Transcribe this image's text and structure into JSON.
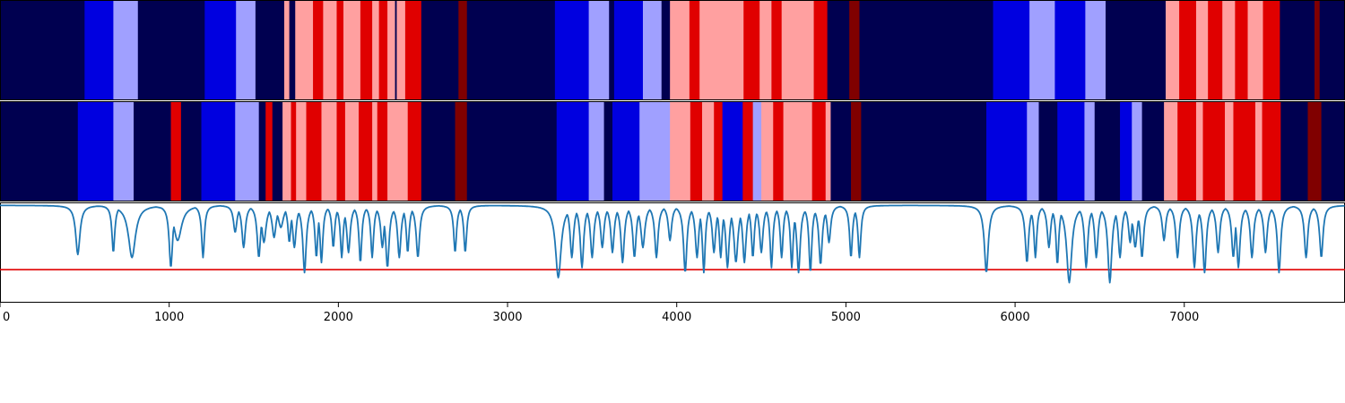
{
  "chart_data": {
    "type": "segmentation-and-line",
    "colors": {
      "c0": "#000050",
      "c1": "#0000e0",
      "c2": "#a0a0ff",
      "c3": "#ffa0a0",
      "c4": "#e00000",
      "c5": "#800000",
      "line": "#1f77b4",
      "threshold": "#e00000"
    },
    "xlim": [
      0,
      7950
    ],
    "xticks": [
      0,
      1000,
      2000,
      3000,
      4000,
      5000,
      6000,
      7000
    ],
    "tracks": [
      {
        "name": "",
        "segments": [
          [
            0,
            500,
            "c0"
          ],
          [
            500,
            670,
            "c1"
          ],
          [
            670,
            815,
            "c2"
          ],
          [
            815,
            1210,
            "c0"
          ],
          [
            1210,
            1395,
            "c1"
          ],
          [
            1395,
            1510,
            "c2"
          ],
          [
            1510,
            1680,
            "c0"
          ],
          [
            1680,
            1710,
            "c3"
          ],
          [
            1710,
            1745,
            "c0"
          ],
          [
            1745,
            1850,
            "c3"
          ],
          [
            1850,
            1910,
            "c4"
          ],
          [
            1910,
            1990,
            "c3"
          ],
          [
            1990,
            2030,
            "c4"
          ],
          [
            2030,
            2130,
            "c3"
          ],
          [
            2130,
            2200,
            "c4"
          ],
          [
            2200,
            2240,
            "c3"
          ],
          [
            2240,
            2290,
            "c4"
          ],
          [
            2290,
            2335,
            "c3"
          ],
          [
            2335,
            2345,
            "c0"
          ],
          [
            2345,
            2395,
            "c3"
          ],
          [
            2395,
            2490,
            "c4"
          ],
          [
            2490,
            2710,
            "c0"
          ],
          [
            2710,
            2760,
            "c5"
          ],
          [
            2760,
            3280,
            "c0"
          ],
          [
            3280,
            3480,
            "c1"
          ],
          [
            3480,
            3600,
            "c2"
          ],
          [
            3600,
            3630,
            "c0"
          ],
          [
            3630,
            3800,
            "c1"
          ],
          [
            3800,
            3910,
            "c2"
          ],
          [
            3910,
            3960,
            "c0"
          ],
          [
            3960,
            4075,
            "c3"
          ],
          [
            4075,
            4135,
            "c4"
          ],
          [
            4135,
            4395,
            "c3"
          ],
          [
            4395,
            4490,
            "c4"
          ],
          [
            4490,
            4560,
            "c3"
          ],
          [
            4560,
            4620,
            "c4"
          ],
          [
            4620,
            4810,
            "c3"
          ],
          [
            4810,
            4890,
            "c4"
          ],
          [
            4890,
            5020,
            "c0"
          ],
          [
            5020,
            5080,
            "c5"
          ],
          [
            5080,
            5870,
            "c0"
          ],
          [
            5870,
            6085,
            "c1"
          ],
          [
            6085,
            6235,
            "c2"
          ],
          [
            6235,
            6415,
            "c1"
          ],
          [
            6415,
            6535,
            "c2"
          ],
          [
            6535,
            6890,
            "c0"
          ],
          [
            6890,
            6970,
            "c3"
          ],
          [
            6970,
            7070,
            "c4"
          ],
          [
            7070,
            7140,
            "c3"
          ],
          [
            7140,
            7225,
            "c4"
          ],
          [
            7225,
            7300,
            "c3"
          ],
          [
            7300,
            7375,
            "c4"
          ],
          [
            7375,
            7465,
            "c3"
          ],
          [
            7465,
            7565,
            "c4"
          ],
          [
            7565,
            7770,
            "c0"
          ],
          [
            7770,
            7800,
            "c5"
          ],
          [
            7800,
            7950,
            "c0"
          ]
        ]
      },
      {
        "name": "",
        "segments": [
          [
            0,
            460,
            "c0"
          ],
          [
            460,
            670,
            "c1"
          ],
          [
            670,
            790,
            "c2"
          ],
          [
            790,
            1010,
            "c0"
          ],
          [
            1010,
            1070,
            "c4"
          ],
          [
            1070,
            1190,
            "c0"
          ],
          [
            1190,
            1390,
            "c1"
          ],
          [
            1390,
            1530,
            "c2"
          ],
          [
            1530,
            1570,
            "c0"
          ],
          [
            1570,
            1610,
            "c4"
          ],
          [
            1610,
            1670,
            "c0"
          ],
          [
            1670,
            1720,
            "c3"
          ],
          [
            1720,
            1750,
            "c4"
          ],
          [
            1750,
            1810,
            "c3"
          ],
          [
            1810,
            1900,
            "c4"
          ],
          [
            1900,
            1990,
            "c3"
          ],
          [
            1990,
            2040,
            "c4"
          ],
          [
            2040,
            2120,
            "c3"
          ],
          [
            2120,
            2200,
            "c4"
          ],
          [
            2200,
            2230,
            "c3"
          ],
          [
            2230,
            2290,
            "c4"
          ],
          [
            2290,
            2410,
            "c3"
          ],
          [
            2410,
            2490,
            "c4"
          ],
          [
            2490,
            2690,
            "c0"
          ],
          [
            2690,
            2760,
            "c5"
          ],
          [
            2760,
            3290,
            "c0"
          ],
          [
            3290,
            3480,
            "c1"
          ],
          [
            3480,
            3570,
            "c2"
          ],
          [
            3570,
            3620,
            "c0"
          ],
          [
            3620,
            3780,
            "c1"
          ],
          [
            3780,
            3960,
            "c2"
          ],
          [
            3960,
            4080,
            "c3"
          ],
          [
            4080,
            4150,
            "c4"
          ],
          [
            4150,
            4220,
            "c3"
          ],
          [
            4220,
            4270,
            "c4"
          ],
          [
            4270,
            4390,
            "c1"
          ],
          [
            4390,
            4450,
            "c4"
          ],
          [
            4450,
            4500,
            "c2"
          ],
          [
            4500,
            4570,
            "c3"
          ],
          [
            4570,
            4630,
            "c4"
          ],
          [
            4630,
            4800,
            "c3"
          ],
          [
            4800,
            4880,
            "c4"
          ],
          [
            4880,
            4910,
            "c3"
          ],
          [
            4910,
            5030,
            "c0"
          ],
          [
            5030,
            5090,
            "c5"
          ],
          [
            5090,
            5830,
            "c0"
          ],
          [
            5830,
            6070,
            "c1"
          ],
          [
            6070,
            6140,
            "c2"
          ],
          [
            6140,
            6250,
            "c0"
          ],
          [
            6250,
            6410,
            "c1"
          ],
          [
            6410,
            6470,
            "c2"
          ],
          [
            6470,
            6620,
            "c0"
          ],
          [
            6620,
            6690,
            "c1"
          ],
          [
            6690,
            6750,
            "c2"
          ],
          [
            6750,
            6880,
            "c0"
          ],
          [
            6880,
            6960,
            "c3"
          ],
          [
            6960,
            7070,
            "c4"
          ],
          [
            7070,
            7110,
            "c3"
          ],
          [
            7110,
            7240,
            "c4"
          ],
          [
            7240,
            7290,
            "c3"
          ],
          [
            7290,
            7420,
            "c4"
          ],
          [
            7420,
            7460,
            "c3"
          ],
          [
            7460,
            7570,
            "c4"
          ],
          [
            7570,
            7730,
            "c0"
          ],
          [
            7730,
            7810,
            "c5"
          ],
          [
            7810,
            7950,
            "c0"
          ]
        ]
      }
    ],
    "line": {
      "ylim": [
        0,
        1
      ],
      "threshold": 0.33,
      "baseline": 0.97,
      "dips": [
        [
          460,
          0.48,
          15
        ],
        [
          670,
          0.5,
          10
        ],
        [
          780,
          0.45,
          25
        ],
        [
          1010,
          0.35,
          12
        ],
        [
          1050,
          0.62,
          28
        ],
        [
          1200,
          0.45,
          10
        ],
        [
          1390,
          0.7,
          12
        ],
        [
          1440,
          0.55,
          12
        ],
        [
          1530,
          0.45,
          12
        ],
        [
          1560,
          0.6,
          15
        ],
        [
          1620,
          0.65,
          14
        ],
        [
          1660,
          0.75,
          18
        ],
        [
          1710,
          0.6,
          10
        ],
        [
          1740,
          0.55,
          12
        ],
        [
          1800,
          0.3,
          12
        ],
        [
          1870,
          0.45,
          10
        ],
        [
          1900,
          0.4,
          10
        ],
        [
          1970,
          0.55,
          10
        ],
        [
          2020,
          0.45,
          10
        ],
        [
          2060,
          0.5,
          12
        ],
        [
          2130,
          0.4,
          10
        ],
        [
          2200,
          0.45,
          10
        ],
        [
          2260,
          0.55,
          12
        ],
        [
          2290,
          0.35,
          12
        ],
        [
          2360,
          0.45,
          12
        ],
        [
          2410,
          0.5,
          10
        ],
        [
          2470,
          0.45,
          12
        ],
        [
          2690,
          0.5,
          10
        ],
        [
          2750,
          0.5,
          10
        ],
        [
          3300,
          0.25,
          20
        ],
        [
          3380,
          0.45,
          12
        ],
        [
          3440,
          0.35,
          12
        ],
        [
          3500,
          0.45,
          12
        ],
        [
          3560,
          0.55,
          12
        ],
        [
          3620,
          0.5,
          12
        ],
        [
          3680,
          0.4,
          12
        ],
        [
          3750,
          0.45,
          12
        ],
        [
          3800,
          0.55,
          14
        ],
        [
          3880,
          0.45,
          12
        ],
        [
          3960,
          0.62,
          12
        ],
        [
          4050,
          0.3,
          12
        ],
        [
          4120,
          0.45,
          12
        ],
        [
          4160,
          0.3,
          10
        ],
        [
          4220,
          0.5,
          12
        ],
        [
          4260,
          0.45,
          10
        ],
        [
          4300,
          0.35,
          12
        ],
        [
          4350,
          0.4,
          14
        ],
        [
          4400,
          0.4,
          12
        ],
        [
          4450,
          0.45,
          10
        ],
        [
          4500,
          0.5,
          12
        ],
        [
          4560,
          0.35,
          10
        ],
        [
          4620,
          0.45,
          10
        ],
        [
          4680,
          0.35,
          10
        ],
        [
          4720,
          0.3,
          12
        ],
        [
          4790,
          0.3,
          10
        ],
        [
          4850,
          0.38,
          12
        ],
        [
          4900,
          0.6,
          12
        ],
        [
          5030,
          0.45,
          10
        ],
        [
          5080,
          0.45,
          10
        ],
        [
          5830,
          0.3,
          14
        ],
        [
          6070,
          0.4,
          12
        ],
        [
          6120,
          0.45,
          10
        ],
        [
          6200,
          0.55,
          12
        ],
        [
          6250,
          0.38,
          10
        ],
        [
          6320,
          0.2,
          18
        ],
        [
          6420,
          0.35,
          12
        ],
        [
          6480,
          0.45,
          12
        ],
        [
          6560,
          0.2,
          14
        ],
        [
          6620,
          0.45,
          12
        ],
        [
          6680,
          0.6,
          12
        ],
        [
          6710,
          0.55,
          14
        ],
        [
          6750,
          0.45,
          12
        ],
        [
          6880,
          0.62,
          12
        ],
        [
          6960,
          0.45,
          12
        ],
        [
          7060,
          0.35,
          12
        ],
        [
          7120,
          0.3,
          12
        ],
        [
          7200,
          0.5,
          12
        ],
        [
          7290,
          0.45,
          12
        ],
        [
          7320,
          0.35,
          12
        ],
        [
          7400,
          0.45,
          12
        ],
        [
          7480,
          0.5,
          12
        ],
        [
          7560,
          0.3,
          12
        ],
        [
          7720,
          0.45,
          12
        ],
        [
          7810,
          0.45,
          12
        ]
      ]
    }
  }
}
